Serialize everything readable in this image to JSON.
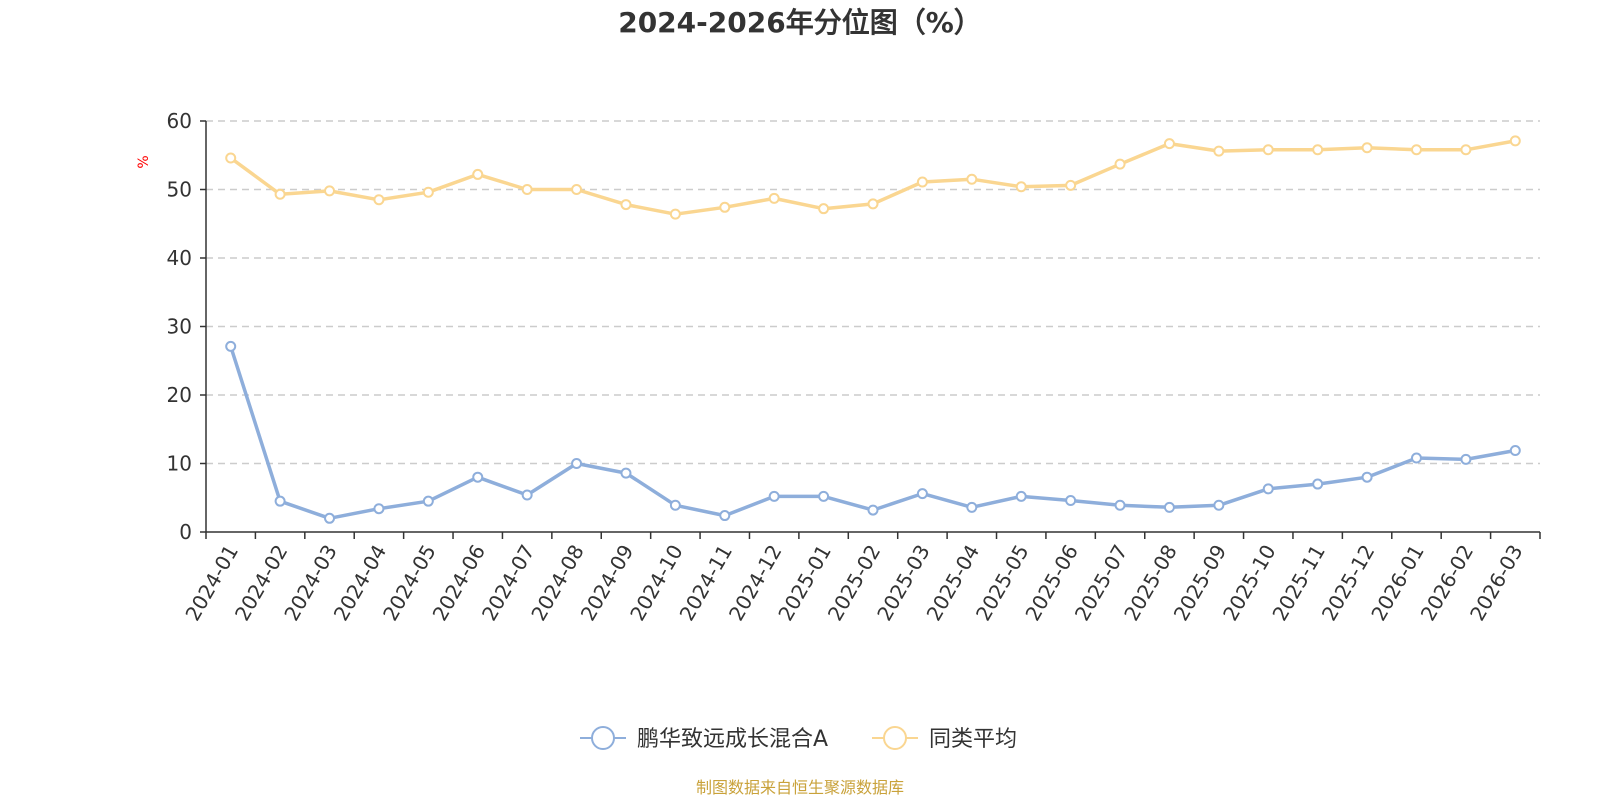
{
  "chart_data": {
    "type": "line",
    "title": "2024-2026年分位图（%）",
    "unit": "%",
    "categories": [
      "2024-01",
      "2024-02",
      "2024-03",
      "2024-04",
      "2024-05",
      "2024-06",
      "2024-07",
      "2024-08",
      "2024-09",
      "2024-10",
      "2024-11",
      "2024-12",
      "2025-01",
      "2025-02",
      "2025-03",
      "2025-04",
      "2025-05",
      "2025-06",
      "2025-07",
      "2025-08",
      "2025-09",
      "2025-10",
      "2025-11",
      "2025-12",
      "2026-01",
      "2026-02",
      "2026-03"
    ],
    "series": [
      {
        "name": "鹏华致远成长混合A",
        "color": "#8eaedb",
        "values": [
          27.1,
          4.5,
          2.0,
          3.4,
          4.5,
          8.0,
          5.4,
          10.0,
          8.6,
          3.9,
          2.4,
          5.2,
          5.2,
          3.2,
          5.6,
          3.6,
          5.2,
          4.6,
          3.9,
          3.6,
          3.9,
          6.3,
          7.0,
          8.0,
          10.8,
          10.6,
          11.9
        ]
      },
      {
        "name": "同类平均",
        "color": "#fad691",
        "values": [
          54.6,
          49.3,
          49.8,
          48.5,
          49.6,
          52.2,
          50.0,
          50.0,
          47.8,
          46.4,
          47.4,
          48.7,
          47.2,
          47.9,
          51.1,
          51.5,
          50.4,
          50.6,
          53.7,
          56.7,
          55.6,
          55.8,
          55.8,
          56.1,
          55.8,
          55.8,
          57.1
        ]
      }
    ],
    "ylim": [
      0,
      60
    ],
    "yticks": [
      0,
      10,
      20,
      30,
      40,
      50,
      60
    ],
    "grid": true,
    "legend_position": "bottom-center"
  },
  "source_note": "制图数据来自恒生聚源数据库"
}
